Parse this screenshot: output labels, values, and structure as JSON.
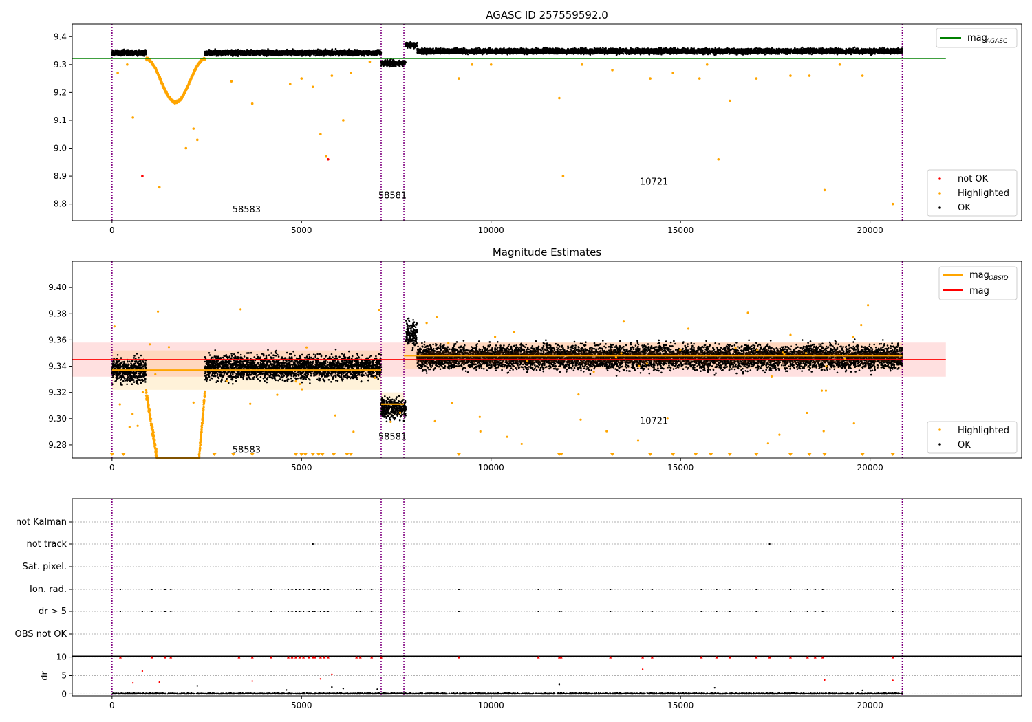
{
  "chart_data": [
    {
      "type": "scatter",
      "title": "AGASC ID 257559592.0",
      "xlim": [
        -1050,
        24000
      ],
      "ylim": [
        8.74,
        9.445
      ],
      "y_ticks": [
        "8.8",
        "8.9",
        "9.0",
        "9.1",
        "9.2",
        "9.3",
        "9.4"
      ],
      "x_ticks": [
        "0",
        "5000",
        "10000",
        "15000",
        "20000"
      ],
      "legend_upper": [
        {
          "label": "mag",
          "sub": "AGASC",
          "color": "#008000",
          "kind": "line"
        }
      ],
      "legend_lower": [
        {
          "label": "not OK",
          "color": "#ff0000",
          "kind": "dot"
        },
        {
          "label": "Highlighted",
          "color": "#ffa500",
          "kind": "dot"
        },
        {
          "label": "OK",
          "color": "#000000",
          "kind": "dot"
        }
      ],
      "legend_upper_position": "upper right",
      "legend_lower_position": "lower right",
      "obsids": [
        {
          "label": "58583",
          "x": 3550,
          "y": 8.77
        },
        {
          "label": "58581",
          "x": 7400,
          "y": 8.82
        },
        {
          "label": "10721",
          "x": 14300,
          "y": 8.87
        }
      ],
      "obs_boundaries": [
        0,
        7100,
        7700,
        20850
      ],
      "mag_agasc": 9.322,
      "mag_agasc_xrange": [
        -1050,
        22000
      ],
      "segments": [
        {
          "x0": 0,
          "x1": 900,
          "y": 9.342,
          "noise": 0.009
        },
        {
          "x0": 900,
          "x1": 2450,
          "dip": true,
          "y": 9.32,
          "depth": 0.155,
          "center": 1800
        },
        {
          "x0": 2450,
          "x1": 7100,
          "y": 9.342,
          "noise": 0.009
        },
        {
          "x0": 7100,
          "x1": 7750,
          "y": 9.305,
          "noise": 0.01
        },
        {
          "x0": 7750,
          "x1": 8050,
          "y": 9.37,
          "noise": 0.01
        },
        {
          "x0": 8050,
          "x1": 20850,
          "y": 9.348,
          "noise": 0.009
        }
      ],
      "highlighted_outliers": [
        [
          150,
          9.27
        ],
        [
          400,
          9.3
        ],
        [
          550,
          9.11
        ],
        [
          1250,
          8.86
        ],
        [
          1950,
          9.0
        ],
        [
          2150,
          9.07
        ],
        [
          2250,
          9.03
        ],
        [
          3150,
          9.24
        ],
        [
          3700,
          9.16
        ],
        [
          4700,
          9.23
        ],
        [
          5000,
          9.25
        ],
        [
          5300,
          9.22
        ],
        [
          5500,
          9.05
        ],
        [
          5650,
          8.97
        ],
        [
          5800,
          9.26
        ],
        [
          6100,
          9.1
        ],
        [
          6300,
          9.27
        ],
        [
          6800,
          9.31
        ],
        [
          9150,
          9.25
        ],
        [
          9500,
          9.3
        ],
        [
          11800,
          9.18
        ],
        [
          11900,
          8.9
        ],
        [
          13200,
          9.28
        ],
        [
          14200,
          9.25
        ],
        [
          14800,
          9.27
        ],
        [
          15500,
          9.25
        ],
        [
          16000,
          8.96
        ],
        [
          16300,
          9.17
        ],
        [
          17000,
          9.25
        ],
        [
          17900,
          9.26
        ],
        [
          18400,
          9.26
        ],
        [
          18800,
          8.85
        ],
        [
          19800,
          9.26
        ],
        [
          20600,
          8.8
        ],
        [
          10000,
          9.3
        ],
        [
          12400,
          9.3
        ],
        [
          15700,
          9.3
        ],
        [
          19200,
          9.3
        ]
      ],
      "not_ok_points": [
        [
          800,
          8.9
        ],
        [
          5700,
          8.96
        ]
      ]
    },
    {
      "type": "scatter",
      "title": "Magnitude Estimates",
      "xlim": [
        -1050,
        24000
      ],
      "ylim": [
        9.27,
        9.42
      ],
      "y_ticks": [
        "9.28",
        "9.30",
        "9.32",
        "9.34",
        "9.36",
        "9.38",
        "9.40"
      ],
      "x_ticks": [
        "0",
        "5000",
        "10000",
        "15000",
        "20000"
      ],
      "legend_upper": [
        {
          "label": "mag",
          "sub": "OBSID",
          "color": "#ffa500",
          "kind": "line"
        },
        {
          "label": "mag",
          "sub": "",
          "color": "#ff0000",
          "kind": "line"
        }
      ],
      "legend_lower": [
        {
          "label": "Highlighted",
          "color": "#ffa500",
          "kind": "dot"
        },
        {
          "label": "OK",
          "color": "#000000",
          "kind": "dot"
        }
      ],
      "obsids": [
        {
          "label": "58583",
          "x": 3550,
          "y": 9.274
        },
        {
          "label": "58581",
          "x": 7400,
          "y": 9.284
        },
        {
          "label": "10721",
          "x": 14300,
          "y": 9.296
        }
      ],
      "obs_boundaries": [
        0,
        7100,
        7700,
        20850
      ],
      "mag": 9.345,
      "mag_band": [
        9.332,
        9.358
      ],
      "mag_xrange": [
        -1050,
        22000
      ],
      "mag_obsid": [
        {
          "x0": 0,
          "x1": 7100,
          "y": 9.337,
          "band": [
            9.322,
            9.352
          ]
        },
        {
          "x0": 7100,
          "x1": 7700,
          "y": 9.311,
          "band": [
            9.302,
            9.32
          ]
        },
        {
          "x0": 7700,
          "x1": 20850,
          "y": 9.348,
          "band": [
            9.338,
            9.358
          ]
        }
      ],
      "segments": [
        {
          "x0": 0,
          "x1": 900,
          "y": 9.337,
          "noise": 0.009
        },
        {
          "x0": 900,
          "x1": 2450,
          "dip": true,
          "y": 9.32,
          "depth": 0.06,
          "center": 1800
        },
        {
          "x0": 2450,
          "x1": 7100,
          "y": 9.339,
          "noise": 0.009
        },
        {
          "x0": 7100,
          "x1": 7750,
          "y": 9.308,
          "noise": 0.008
        },
        {
          "x0": 7750,
          "x1": 8050,
          "y": 9.365,
          "noise": 0.01
        },
        {
          "x0": 8050,
          "x1": 20850,
          "y": 9.347,
          "noise": 0.009
        }
      ],
      "clipped_markers_x": [
        0,
        300,
        2700,
        3200,
        3700,
        4850,
        5000,
        5100,
        5300,
        5450,
        5550,
        5850,
        6200,
        6300,
        9150,
        11800,
        11850,
        13200,
        14200,
        14800,
        15400,
        15800,
        16300,
        17000,
        17900,
        18400,
        18800,
        19800,
        20600
      ]
    },
    {
      "type": "scatter",
      "title": "",
      "xlim": [
        -1050,
        24000
      ],
      "categories": [
        "not Kalman",
        "not track",
        "Sat. pixel.",
        "Ion. rad.",
        "dr > 5",
        "OBS not OK"
      ],
      "flag_points": {
        "not track": [
          5300,
          17350
        ],
        "Ion. rad.": [
          220,
          1050,
          1400,
          1550,
          3350,
          3700,
          4200,
          4650,
          4750,
          4850,
          4950,
          5050,
          5200,
          5300,
          5350,
          5500,
          5600,
          5700,
          6450,
          6550,
          6850,
          7100,
          9150,
          11250,
          11800,
          11850,
          13150,
          14000,
          14250,
          15550,
          15950,
          16300,
          17000,
          17900,
          18350,
          18550,
          18750,
          20600
        ],
        "dr > 5": [
          220,
          800,
          1050,
          1400,
          1550,
          3350,
          3700,
          4200,
          4650,
          4750,
          4850,
          4950,
          5050,
          5200,
          5300,
          5350,
          5500,
          5600,
          5700,
          6450,
          6550,
          6850,
          7100,
          9150,
          11250,
          11800,
          11850,
          13150,
          14000,
          14250,
          15550,
          15950,
          16300,
          17000,
          17900,
          18350,
          18550,
          18750,
          20600
        ]
      },
      "obs_boundaries": [
        0,
        7100,
        7700,
        20850
      ]
    },
    {
      "type": "scatter",
      "title": "",
      "ylabel": "dr",
      "xlim": [
        -1050,
        24000
      ],
      "ylim": [
        -0.5,
        10.3
      ],
      "y_ticks": [
        "0",
        "5",
        "10"
      ],
      "x_ticks": [
        "0",
        "5000",
        "10000",
        "15000",
        "20000"
      ],
      "clipped_markers_x": [
        220,
        1050,
        1400,
        1550,
        3350,
        3700,
        4200,
        4650,
        4750,
        4850,
        4950,
        5050,
        5200,
        5300,
        5350,
        5500,
        5600,
        5700,
        6450,
        6550,
        6850,
        7100,
        9150,
        11250,
        11800,
        11850,
        13150,
        14000,
        14250,
        15550,
        15950,
        16300,
        17000,
        17350,
        17900,
        18350,
        18550,
        18750,
        20600
      ],
      "red_points": [
        [
          800,
          6.2
        ],
        [
          1250,
          3.2
        ],
        [
          3700,
          3.5
        ],
        [
          5500,
          4.1
        ],
        [
          5800,
          5.3
        ],
        [
          14000,
          6.7
        ],
        [
          18800,
          3.8
        ],
        [
          20600,
          3.7
        ],
        [
          550,
          3.0
        ]
      ],
      "black_spikes": [
        [
          2250,
          2.2
        ],
        [
          5800,
          1.9
        ],
        [
          6100,
          1.5
        ],
        [
          11800,
          2.6
        ],
        [
          15900,
          1.7
        ],
        [
          4600,
          1.1
        ],
        [
          7000,
          1.3
        ],
        [
          19800,
          1.0
        ]
      ],
      "obs_boundaries": [
        0,
        7100,
        7700,
        20850
      ]
    }
  ]
}
